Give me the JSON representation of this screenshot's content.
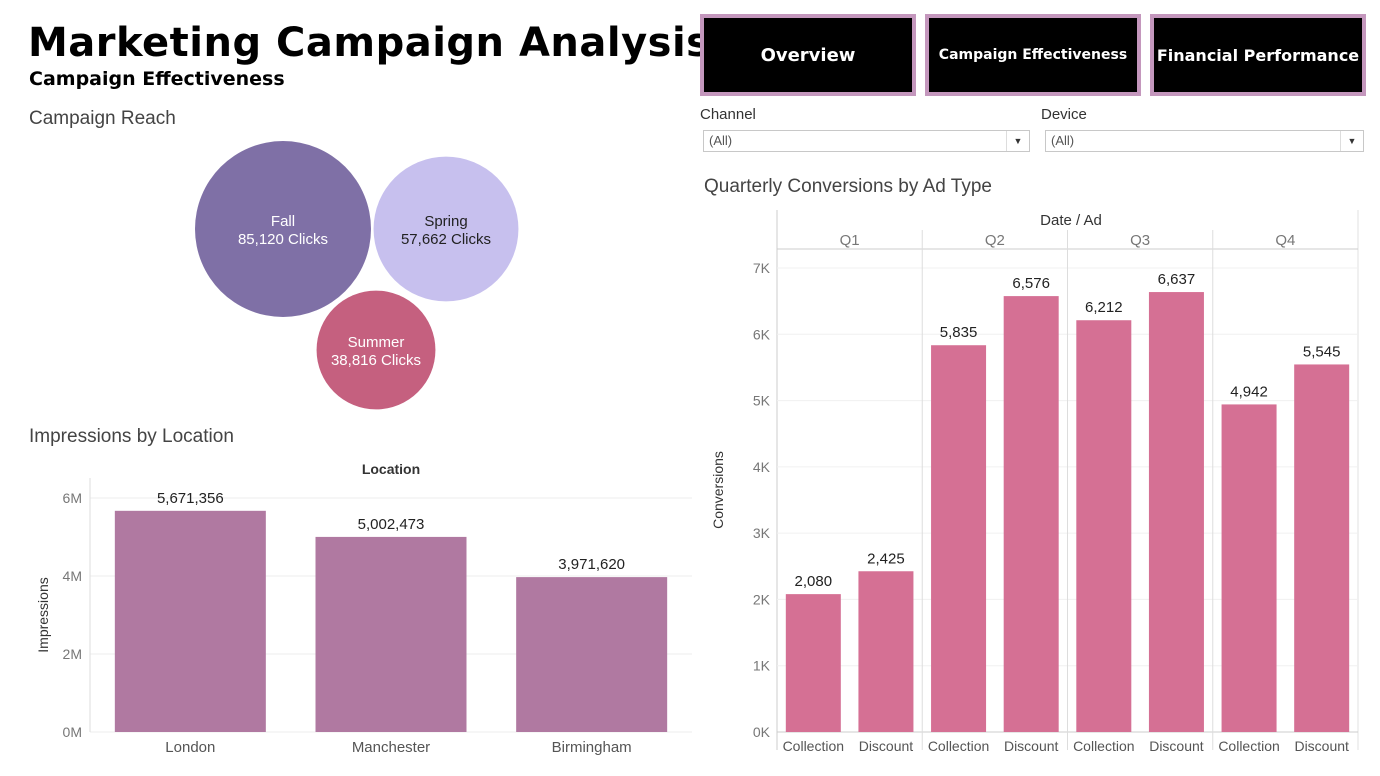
{
  "header": {
    "title": "Marketing Campaign Analysis",
    "subtitle": "Campaign Effectiveness"
  },
  "nav": {
    "overview_label": "Overview",
    "campaign_label": "Campaign Effectiveness",
    "financial_label": "Financial Performance"
  },
  "filters": {
    "channel": {
      "label": "Channel",
      "value": "(All)"
    },
    "device": {
      "label": "Device",
      "value": "(All)"
    }
  },
  "colors": {
    "fall": "#7f70a6",
    "spring": "#c7c0ee",
    "summer": "#c5607f",
    "location_bar": "#b079a1",
    "conversion_bar": "#d57094",
    "nav_border": "#c497bd"
  },
  "chart_data": [
    {
      "type": "bubble",
      "title": "Campaign Reach",
      "unit": "Clicks",
      "items": [
        {
          "name": "Fall",
          "value": 85120,
          "label": "85,120 Clicks"
        },
        {
          "name": "Spring",
          "value": 57662,
          "label": "57,662 Clicks"
        },
        {
          "name": "Summer",
          "value": 38816,
          "label": "38,816 Clicks"
        }
      ]
    },
    {
      "type": "bar",
      "title": "Impressions by Location",
      "header": "Location",
      "ylabel": "Impressions",
      "categories": [
        "London",
        "Manchester",
        "Birmingham"
      ],
      "values": [
        5671356,
        5002473,
        3971620
      ],
      "value_labels": [
        "5,671,356",
        "5,002,473",
        "3,971,620"
      ],
      "ylim": [
        0,
        6000000
      ],
      "ticks": [
        {
          "value": 0,
          "label": "0M"
        },
        {
          "value": 2000000,
          "label": "2M"
        },
        {
          "value": 4000000,
          "label": "4M"
        },
        {
          "value": 6000000,
          "label": "6M"
        }
      ]
    },
    {
      "type": "bar",
      "title": "Quarterly Conversions by Ad Type",
      "header": "Date / Ad",
      "ylabel": "Conversions",
      "quarters": [
        "Q1",
        "Q2",
        "Q3",
        "Q4"
      ],
      "ad_types": [
        "Collection",
        "Discount"
      ],
      "values": [
        [
          2080,
          2425
        ],
        [
          5835,
          6576
        ],
        [
          6212,
          6637
        ],
        [
          4942,
          5545
        ]
      ],
      "value_labels": [
        [
          "2,080",
          "2,425"
        ],
        [
          "5,835",
          "6,576"
        ],
        [
          "6,212",
          "6,637"
        ],
        [
          "4,942",
          "5,545"
        ]
      ],
      "ylim": [
        0,
        7000
      ],
      "ticks": [
        {
          "value": 0,
          "label": "0K"
        },
        {
          "value": 1000,
          "label": "1K"
        },
        {
          "value": 2000,
          "label": "2K"
        },
        {
          "value": 3000,
          "label": "3K"
        },
        {
          "value": 4000,
          "label": "4K"
        },
        {
          "value": 5000,
          "label": "5K"
        },
        {
          "value": 6000,
          "label": "6K"
        },
        {
          "value": 7000,
          "label": "7K"
        }
      ]
    }
  ]
}
